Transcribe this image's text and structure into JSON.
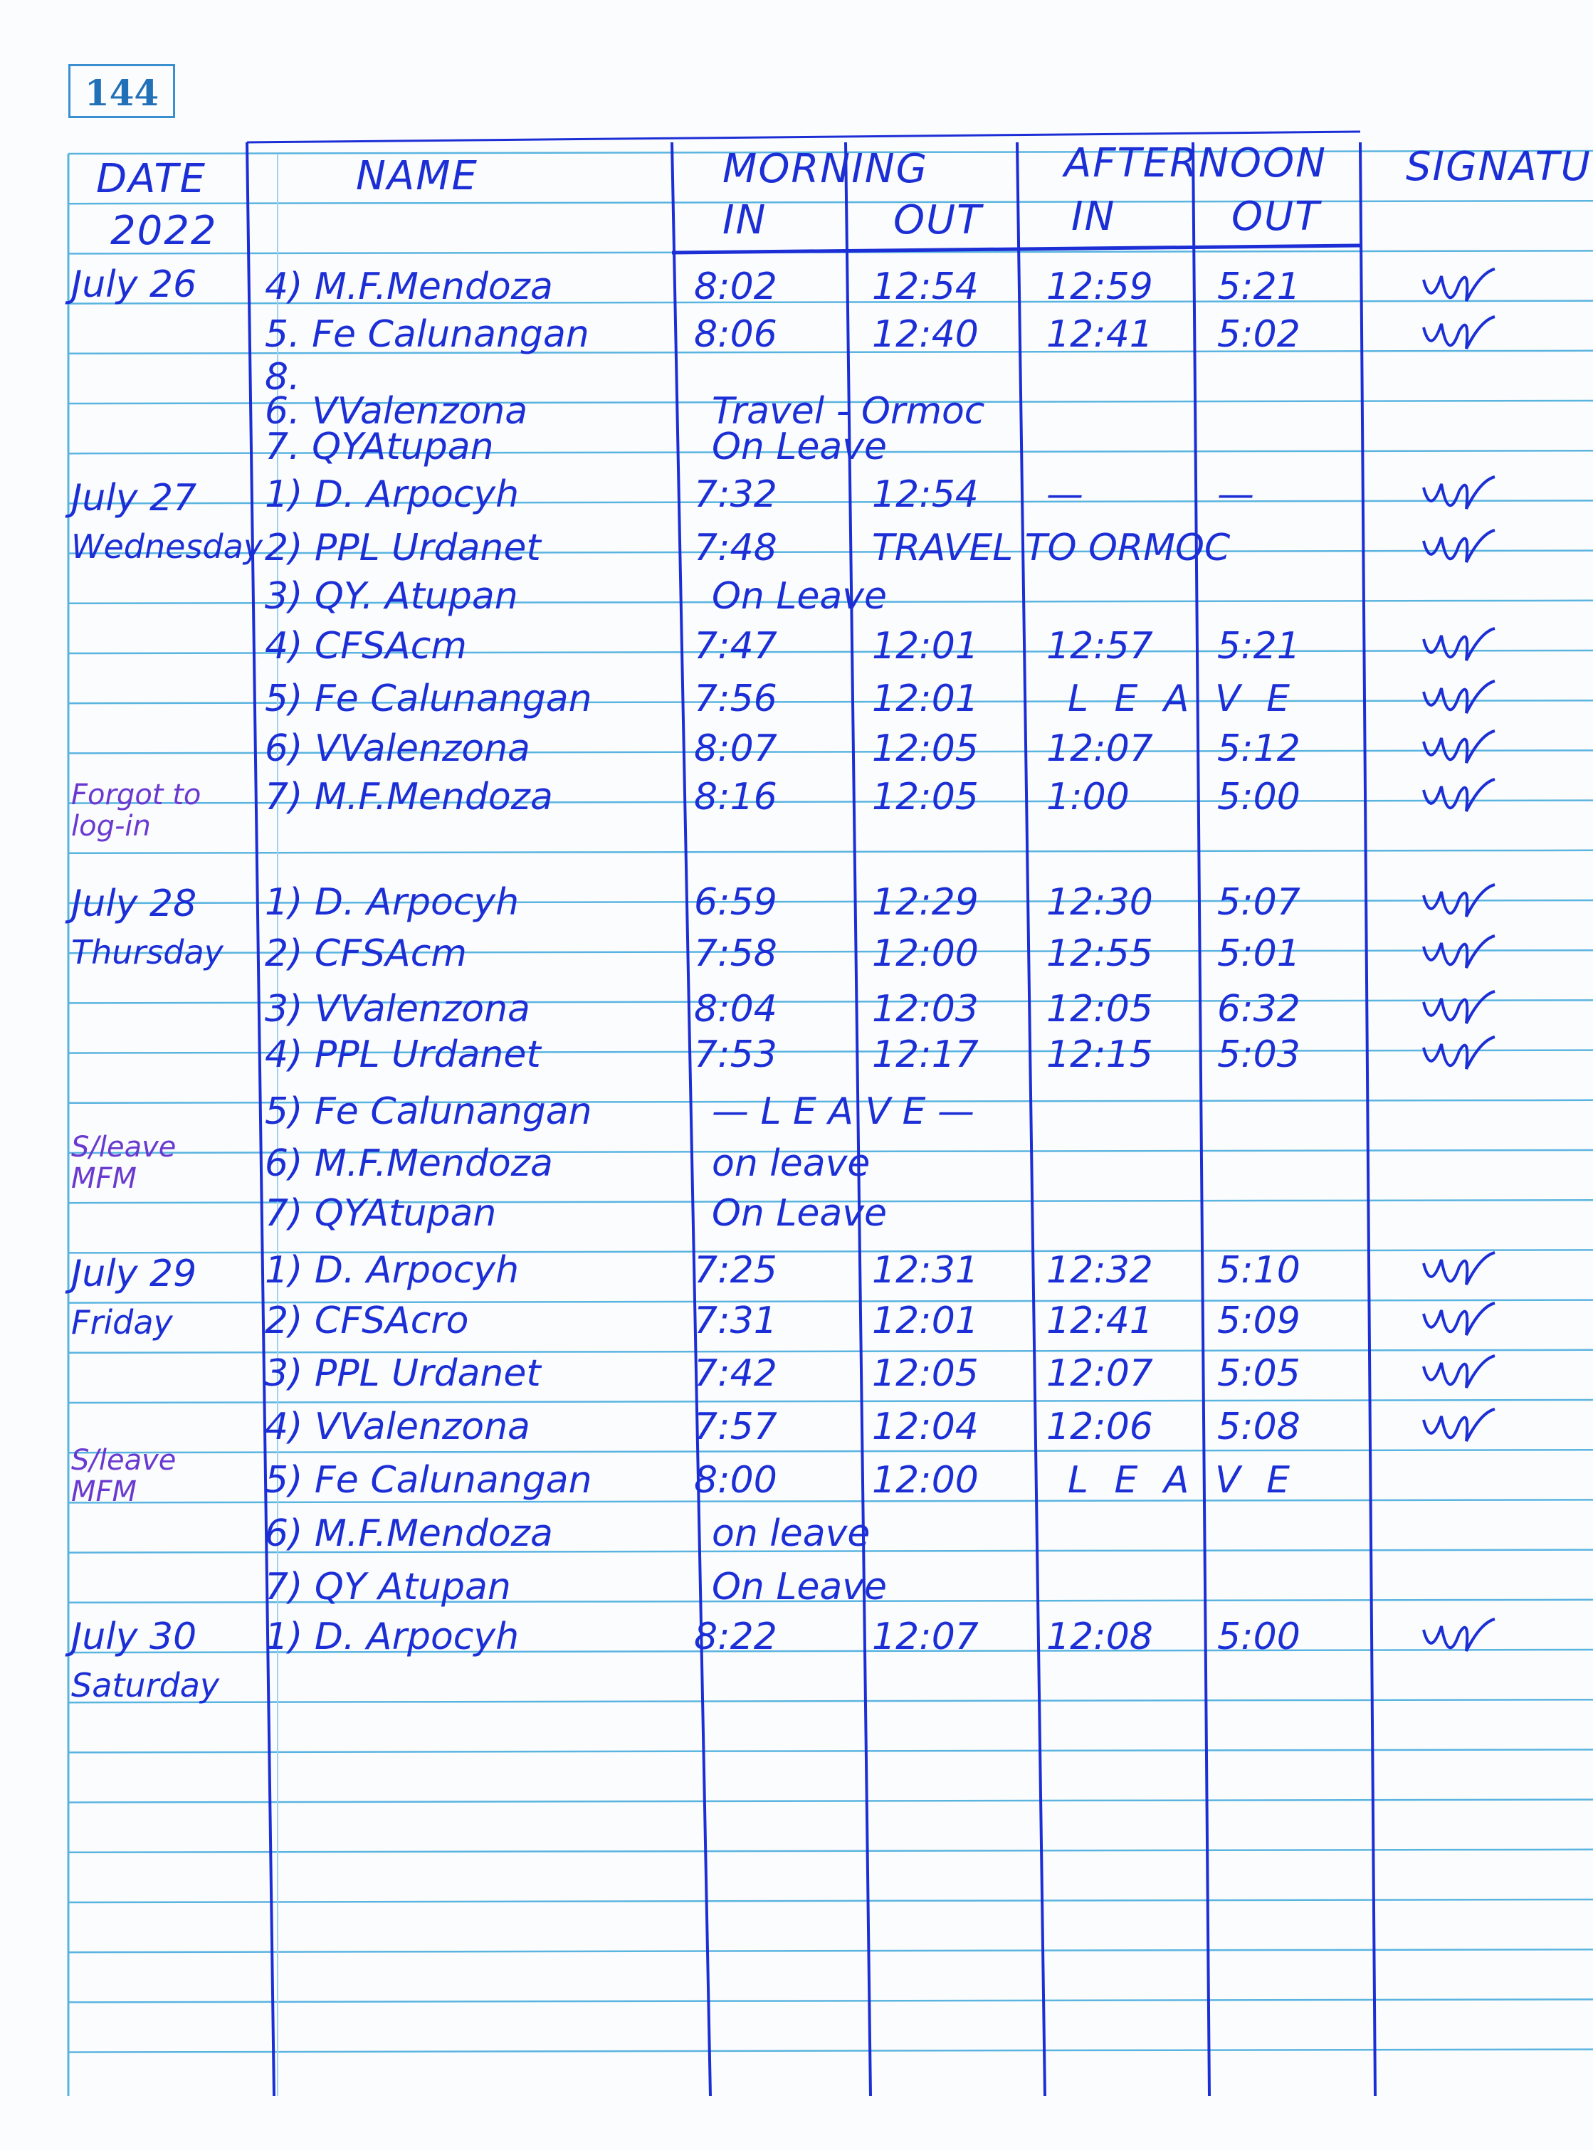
{
  "page_number": "144",
  "header": {
    "date": "DATE",
    "year": "2022",
    "name": "NAME",
    "morning": "MORNING",
    "afternoon": "AFTERNOON",
    "in": "IN",
    "out": "OUT",
    "signature": "SIGNATU"
  },
  "colors": {
    "ink": "#1c2fd6",
    "rule_lines": "#5ab4e0",
    "page_box": "#3a8fd0"
  },
  "days": [
    {
      "date": "July 26",
      "weekday": "",
      "entries": [
        {
          "name": "4) M.F.Mendoza",
          "am_in": "8:02",
          "am_out": "12:54",
          "pm_in": "12:59",
          "pm_out": "5:21",
          "signed": true
        },
        {
          "name": "5. Fe Calunangan",
          "am_in": "8:06",
          "am_out": "12:40",
          "pm_in": "12:41",
          "pm_out": "5:02",
          "signed": true
        },
        {
          "name": "8."
        },
        {
          "name": "6. VValenzona",
          "remark": "Travel - Ormoc"
        },
        {
          "name": "7. QYAtupan",
          "remark": "On Leave"
        }
      ]
    },
    {
      "date": "July 27",
      "weekday": "Wednesday",
      "note": "Forgot to log-in",
      "entries": [
        {
          "name": "1) D. Arpocyh",
          "am_in": "7:32",
          "am_out": "12:54",
          "pm_in": "—",
          "pm_out": "—",
          "signed": true
        },
        {
          "name": "2) PPL Urdanet",
          "am_in": "7:48",
          "remark_am_out": "TRAVEL TO ORMOC",
          "signed": true
        },
        {
          "name": "3) QY. Atupan",
          "remark": "On Leave"
        },
        {
          "name": "4) CFSAcm",
          "am_in": "7:47",
          "am_out": "12:01",
          "pm_in": "12:57",
          "pm_out": "5:21",
          "signed": true
        },
        {
          "name": "5) Fe Calunangan",
          "am_in": "7:56",
          "am_out": "12:01",
          "pm_remark": "L E A V E",
          "signed": true
        },
        {
          "name": "6) VValenzona",
          "am_in": "8:07",
          "am_out": "12:05",
          "pm_in": "12:07",
          "pm_out": "5:12",
          "signed": true
        },
        {
          "name": "7) M.F.Mendoza",
          "am_in": "8:16",
          "am_out": "12:05",
          "pm_in": "1:00",
          "pm_out": "5:00",
          "signed": true
        }
      ]
    },
    {
      "date": "July 28",
      "weekday": "Thursday",
      "note": "S/leave MFM",
      "entries": [
        {
          "name": "1) D. Arpocyh",
          "am_in": "6:59",
          "am_out": "12:29",
          "pm_in": "12:30",
          "pm_out": "5:07",
          "signed": true
        },
        {
          "name": "2) CFSAcm",
          "am_in": "7:58",
          "am_out": "12:00",
          "pm_in": "12:55",
          "pm_out": "5:01",
          "signed": true
        },
        {
          "name": "3) VValenzona",
          "am_in": "8:04",
          "am_out": "12:03",
          "pm_in": "12:05",
          "pm_out": "6:32",
          "signed": true
        },
        {
          "name": "4) PPL Urdanet",
          "am_in": "7:53",
          "am_out": "12:17",
          "pm_in": "12:15",
          "pm_out": "5:03",
          "signed": true
        },
        {
          "name": "5) Fe Calunangan",
          "remark": "— L E A V E —"
        },
        {
          "name": "6) M.F.Mendoza",
          "remark": "on leave"
        },
        {
          "name": "7) QYAtupan",
          "remark": "On Leave"
        }
      ]
    },
    {
      "date": "July 29",
      "weekday": "Friday",
      "note": "S/leave MFM",
      "entries": [
        {
          "name": "1) D. Arpocyh",
          "am_in": "7:25",
          "am_out": "12:31",
          "pm_in": "12:32",
          "pm_out": "5:10",
          "signed": true
        },
        {
          "name": "2) CFSAcro",
          "am_in": "7:31",
          "am_out": "12:01",
          "pm_in": "12:41",
          "pm_out": "5:09",
          "signed": true
        },
        {
          "name": "3) PPL Urdanet",
          "am_in": "7:42",
          "am_out": "12:05",
          "pm_in": "12:07",
          "pm_out": "5:05",
          "signed": true
        },
        {
          "name": "4) VValenzona",
          "am_in": "7:57",
          "am_out": "12:04",
          "pm_in": "12:06",
          "pm_out": "5:08",
          "signed": true
        },
        {
          "name": "5) Fe Calunangan",
          "am_in": "8:00",
          "am_out": "12:00",
          "pm_remark": "L E A V E"
        },
        {
          "name": "6) M.F.Mendoza",
          "remark": "on leave"
        },
        {
          "name": "7) QY Atupan",
          "remark": "On Leave"
        }
      ]
    },
    {
      "date": "July 30",
      "weekday": "Saturday",
      "entries": [
        {
          "name": "1) D. Arpocyh",
          "am_in": "8:22",
          "am_out": "12:07",
          "pm_in": "12:08",
          "pm_out": "5:00",
          "signed": true
        }
      ]
    }
  ]
}
